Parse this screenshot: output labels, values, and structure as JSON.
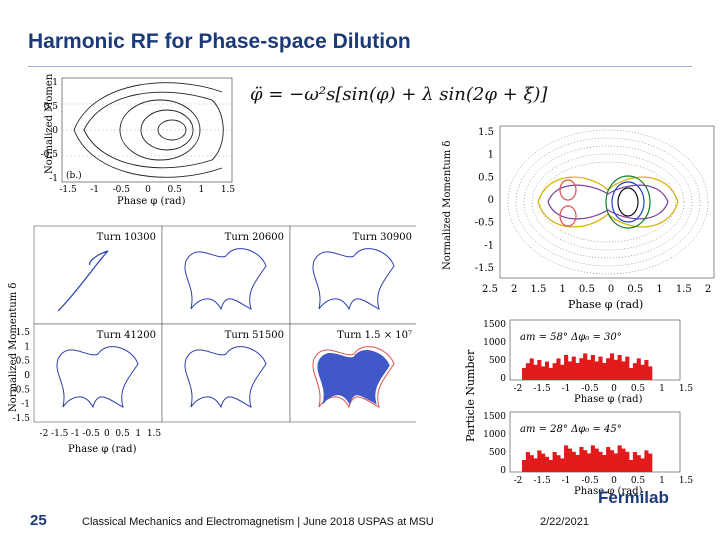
{
  "title": "Harmonic RF for Phase-space Dilution",
  "equation": "φ̈ = −ω²s[sin(φ) + λ sin(2φ + ξ)]",
  "top_left_plot": {
    "ylabel": "Normalized Momentum δ",
    "xlabel": "Phase φ (rad)",
    "panel_label": "(b.)",
    "xticks": [
      "-1.5",
      "-1",
      "-0.5",
      "0",
      "0.5",
      "1",
      "1.5"
    ],
    "yticks": [
      "1",
      "0.5",
      "0",
      "-0.5",
      "-1"
    ]
  },
  "grid_plot": {
    "ylabel": "Normalized Momentum δ",
    "xlabel": "Phase φ (rad)",
    "panels": [
      "Turn 10300",
      "Turn 20600",
      "Turn 30900",
      "Turn 41200",
      "Turn 51500",
      "Turn 1.5 × 10⁷"
    ],
    "yticks": [
      "1.5",
      "1",
      "0.5",
      "0",
      "-0.5",
      "-1",
      "-1.5"
    ],
    "xticks": [
      "-2",
      "-1.5",
      "-1",
      "-0.5",
      "0",
      "0.5",
      "1",
      "1.5"
    ]
  },
  "right_plot": {
    "ylabel": "Normalized Momentum δ",
    "xlabel": "Phase φ (rad)",
    "yticks": [
      "1.5",
      "1",
      "0.5",
      "0",
      "-0.5",
      "-1",
      "-1.5"
    ],
    "xticks": [
      "2.5",
      "2",
      "1.5",
      "1",
      "0.5",
      "0",
      "0.5",
      "1",
      "1.5",
      "2"
    ]
  },
  "histograms": {
    "ylabel": "Particle Number",
    "xlabel": "Phase φ (rad)",
    "top_label": "am = 58° Δφ₀ = 30°",
    "bottom_label": "am = 28° Δφ₀ = 45°",
    "yticks_top": [
      "1500",
      "1000",
      "500",
      "0"
    ],
    "yticks_bottom": [
      "1500",
      "1000",
      "500",
      "0"
    ],
    "xticks_top": [
      "-2",
      "-1.5",
      "-1",
      "-0.5",
      "0",
      "0.5",
      "1",
      "1.5"
    ],
    "xticks_bottom": [
      "-2",
      "-1.5",
      "-1",
      "-0.5",
      "0",
      "0.5",
      "1",
      "1.5"
    ],
    "bar_color": "#e31a1c"
  },
  "footer": {
    "slide_number": "25",
    "course": "Classical Mechanics and Electromagnetism | June 2018 USPAS at MSU",
    "date": "2/22/2021",
    "logo": "Fermilab"
  },
  "colors": {
    "title": "#1b3a78",
    "rule": "#9db0d0"
  }
}
